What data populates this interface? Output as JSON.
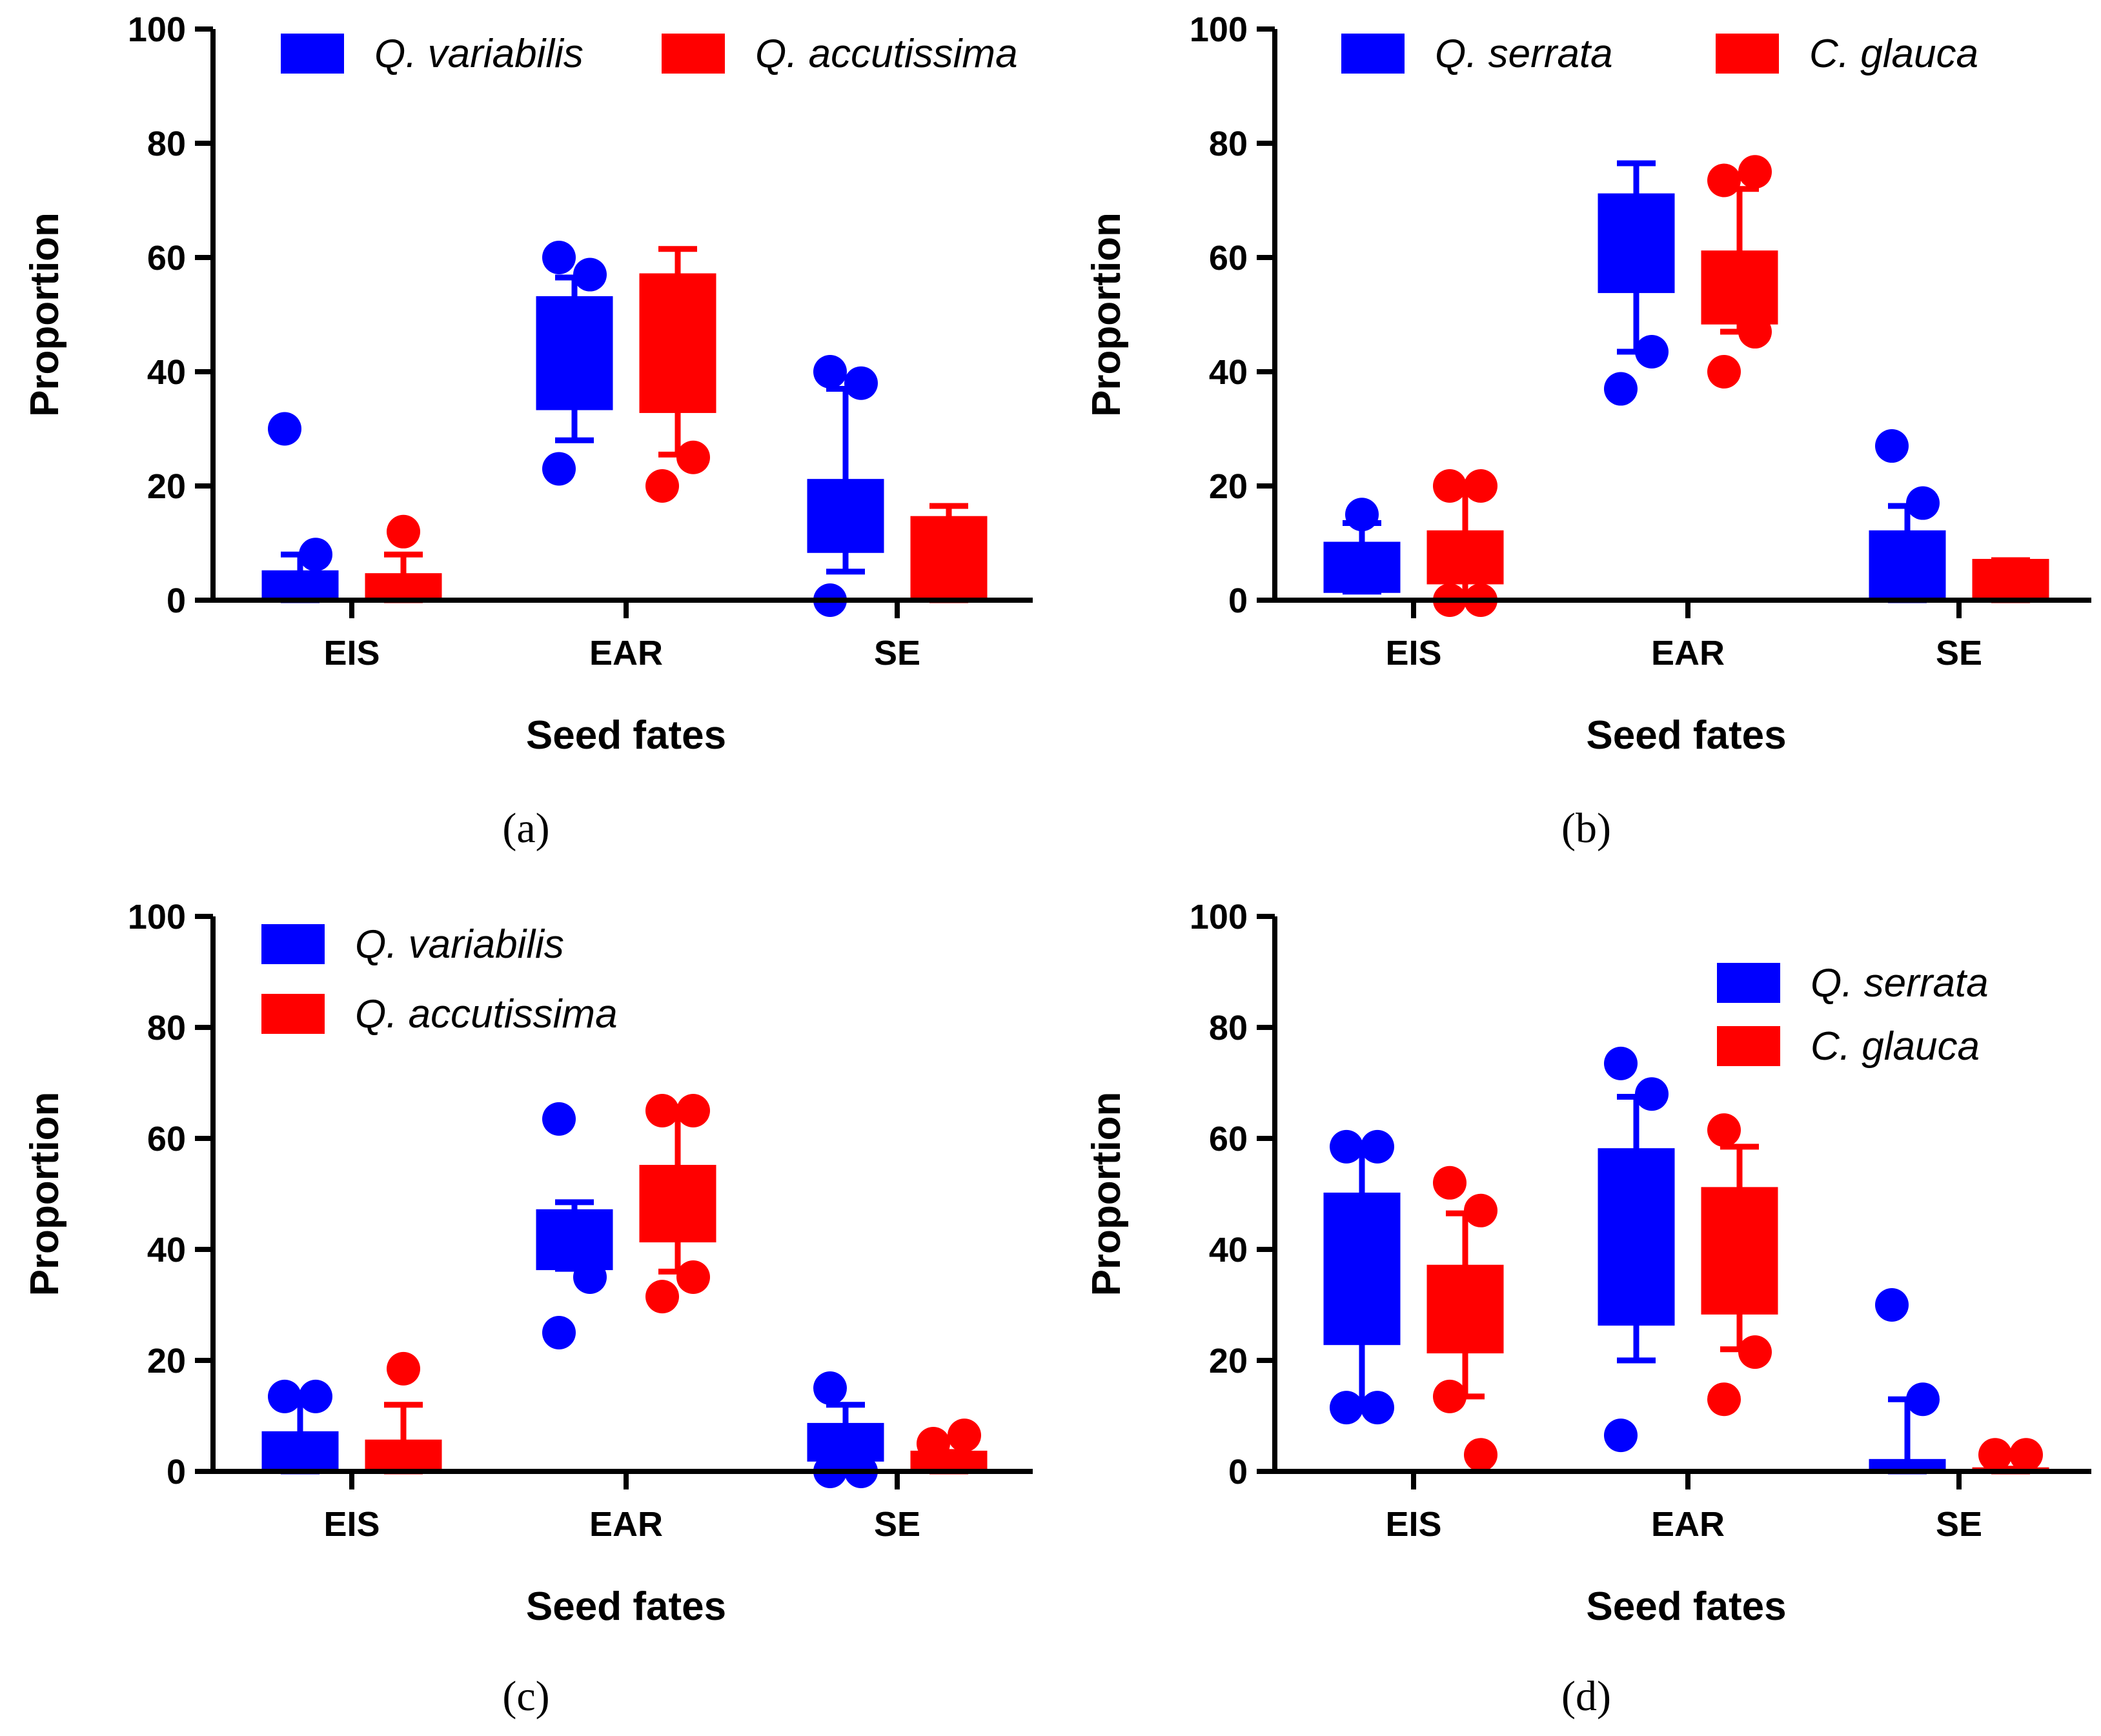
{
  "chart_data": [
    {
      "panel": "(a)",
      "type": "box",
      "xlabel": "Seed fates",
      "ylabel": "Proportion",
      "ylim": [
        0,
        100
      ],
      "yticks": [
        "0",
        "20",
        "40",
        "60",
        "80",
        "100"
      ],
      "categories": [
        "EIS",
        "EAR",
        "SE"
      ],
      "legend_placement": "top",
      "series": [
        {
          "name": "Q. variabilis",
          "color": "#0000ff",
          "boxes": [
            {
              "q1": 0,
              "q3": 5,
              "whisker_low": 0,
              "whisker_high": 8,
              "outliers": [
                30,
                8
              ]
            },
            {
              "q1": 33.5,
              "q3": 53,
              "whisker_low": 28,
              "whisker_high": 56.5,
              "outliers": [
                60,
                57,
                23
              ]
            },
            {
              "q1": 8.5,
              "q3": 21,
              "whisker_low": 5,
              "whisker_high": 37,
              "outliers": [
                40,
                38,
                0
              ]
            }
          ]
        },
        {
          "name": "Q. accutissima",
          "color": "#ff0000",
          "boxes": [
            {
              "q1": 0,
              "q3": 4.5,
              "whisker_low": 0,
              "whisker_high": 8,
              "outliers": [
                12
              ]
            },
            {
              "q1": 33,
              "q3": 57,
              "whisker_low": 25.5,
              "whisker_high": 61.5,
              "outliers": [
                20,
                25
              ]
            },
            {
              "q1": 0,
              "q3": 14.5,
              "whisker_low": 0,
              "whisker_high": 16.5,
              "outliers": []
            }
          ]
        }
      ]
    },
    {
      "panel": "(b)",
      "type": "box",
      "xlabel": "Seed fates",
      "ylabel": "Proportion",
      "ylim": [
        0,
        100
      ],
      "yticks": [
        "0",
        "20",
        "40",
        "60",
        "80",
        "100"
      ],
      "categories": [
        "EIS",
        "EAR",
        "SE"
      ],
      "legend_placement": "top",
      "series": [
        {
          "name": "Q. serrata",
          "color": "#0000ff",
          "boxes": [
            {
              "q1": 1.5,
              "q3": 10,
              "whisker_low": 1.5,
              "whisker_high": 13.5,
              "outliers": [
                15
              ]
            },
            {
              "q1": 54,
              "q3": 71,
              "whisker_low": 43.5,
              "whisker_high": 76.5,
              "outliers": [
                37,
                43.5
              ]
            },
            {
              "q1": 0,
              "q3": 12,
              "whisker_low": 0,
              "whisker_high": 16.5,
              "outliers": [
                27,
                17
              ]
            }
          ]
        },
        {
          "name": "C. glauca",
          "color": "#ff0000",
          "boxes": [
            {
              "q1": 3,
              "q3": 12,
              "whisker_low": 0,
              "whisker_high": 20,
              "outliers": [
                0,
                0,
                20,
                20
              ]
            },
            {
              "q1": 48.5,
              "q3": 61,
              "whisker_low": 47,
              "whisker_high": 72,
              "outliers": [
                40,
                47,
                73.5,
                75
              ]
            },
            {
              "q1": 0,
              "q3": 7,
              "whisker_low": 0,
              "whisker_high": 7,
              "outliers": []
            }
          ]
        }
      ]
    },
    {
      "panel": "(c)",
      "type": "box",
      "xlabel": "Seed fates",
      "ylabel": "Proportion",
      "ylim": [
        0,
        100
      ],
      "yticks": [
        "0",
        "20",
        "40",
        "60",
        "80",
        "100"
      ],
      "categories": [
        "EIS",
        "EAR",
        "SE"
      ],
      "legend_placement": "top-left",
      "series": [
        {
          "name": "Q. variabilis",
          "color": "#0000ff",
          "boxes": [
            {
              "q1": 0,
              "q3": 7,
              "whisker_low": 0,
              "whisker_high": 13.5,
              "outliers": [
                13.5,
                13.5
              ]
            },
            {
              "q1": 36.5,
              "q3": 47,
              "whisker_low": 36.5,
              "whisker_high": 48.5,
              "outliers": [
                63.5,
                35,
                25
              ]
            },
            {
              "q1": 2,
              "q3": 8.5,
              "whisker_low": 0,
              "whisker_high": 12,
              "outliers": [
                15,
                0,
                0
              ]
            }
          ]
        },
        {
          "name": "Q. accutissima",
          "color": "#ff0000",
          "boxes": [
            {
              "q1": 0,
              "q3": 5.5,
              "whisker_low": 0,
              "whisker_high": 12,
              "outliers": [
                18.5
              ]
            },
            {
              "q1": 41.5,
              "q3": 55,
              "whisker_low": 36,
              "whisker_high": 65,
              "outliers": [
                65,
                65,
                31.5,
                35
              ]
            },
            {
              "q1": 0,
              "q3": 3.5,
              "whisker_low": 0,
              "whisker_high": 3.5,
              "outliers": [
                5,
                6.5
              ]
            }
          ]
        }
      ]
    },
    {
      "panel": "(d)",
      "type": "box",
      "xlabel": "Seed fates",
      "ylabel": "Proportion",
      "ylim": [
        0,
        100
      ],
      "yticks": [
        "0",
        "20",
        "40",
        "60",
        "80",
        "100"
      ],
      "categories": [
        "EIS",
        "EAR",
        "SE"
      ],
      "legend_placement": "top-right",
      "series": [
        {
          "name": "Q. serrata",
          "color": "#0000ff",
          "boxes": [
            {
              "q1": 23,
              "q3": 50,
              "whisker_low": 11.5,
              "whisker_high": 58.5,
              "outliers": [
                58.5,
                58.5,
                11.5,
                11.5
              ]
            },
            {
              "q1": 26.5,
              "q3": 58,
              "whisker_low": 20,
              "whisker_high": 67.5,
              "outliers": [
                73.5,
                68,
                6.5
              ]
            },
            {
              "q1": 0,
              "q3": 2,
              "whisker_low": 0,
              "whisker_high": 13,
              "outliers": [
                30,
                13
              ]
            }
          ]
        },
        {
          "name": "C. glauca",
          "color": "#ff0000",
          "boxes": [
            {
              "q1": 21.5,
              "q3": 37,
              "whisker_low": 13.5,
              "whisker_high": 46.5,
              "outliers": [
                52,
                47,
                13.5,
                3
              ]
            },
            {
              "q1": 28.5,
              "q3": 51,
              "whisker_low": 22,
              "whisker_high": 58.5,
              "outliers": [
                61.5,
                21.5,
                13
              ]
            },
            {
              "q1": 0,
              "q3": 0.5,
              "whisker_low": 0,
              "whisker_high": 0.5,
              "outliers": [
                3,
                3
              ]
            }
          ]
        }
      ]
    }
  ]
}
